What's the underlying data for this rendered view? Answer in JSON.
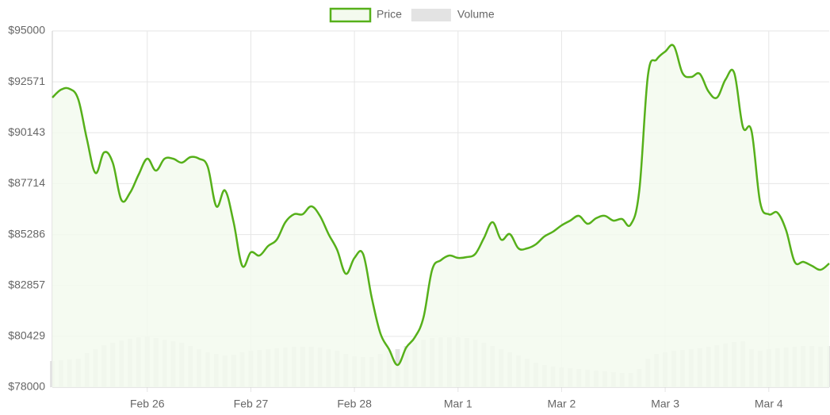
{
  "chart_data": {
    "type": "line",
    "categories": [
      null,
      null,
      null,
      null,
      null,
      null,
      null,
      null,
      null,
      null,
      null,
      "Feb 26",
      null,
      null,
      null,
      null,
      null,
      null,
      null,
      null,
      null,
      null,
      null,
      "Feb 27",
      null,
      null,
      null,
      null,
      null,
      null,
      null,
      null,
      null,
      null,
      null,
      "Feb 28",
      null,
      null,
      null,
      null,
      null,
      null,
      null,
      null,
      null,
      null,
      null,
      "Mar 1",
      null,
      null,
      null,
      null,
      null,
      null,
      null,
      null,
      null,
      null,
      null,
      "Mar 2",
      null,
      null,
      null,
      null,
      null,
      null,
      null,
      null,
      null,
      null,
      null,
      "Mar 3",
      null,
      null,
      null,
      null,
      null,
      null,
      null,
      null,
      null,
      null,
      null,
      "Mar 4",
      null,
      null,
      null,
      null,
      null,
      null,
      null
    ],
    "series": [
      {
        "name": "Price",
        "type": "line",
        "color": "#56b01a",
        "fill_color": "#f3faee",
        "values": [
          91820,
          92198,
          92236,
          91744,
          89851,
          88223,
          89207,
          88715,
          86935,
          87276,
          88147,
          88904,
          88336,
          88904,
          88904,
          88715,
          88980,
          88904,
          88526,
          86632,
          87390,
          85875,
          83793,
          84437,
          84285,
          84739,
          85042,
          85875,
          86254,
          86254,
          86632,
          86178,
          85307,
          84550,
          83414,
          84171,
          84361,
          82278,
          80575,
          79817,
          79060,
          79893,
          80385,
          81332,
          83604,
          84058,
          84285,
          84171,
          84209,
          84361,
          85118,
          85875,
          85042,
          85307,
          84626,
          84626,
          84815,
          85194,
          85421,
          85724,
          85951,
          86178,
          85800,
          86065,
          86178,
          85951,
          86027,
          85762,
          87390,
          92880,
          93637,
          94016,
          94281,
          92993,
          92804,
          92955,
          92122,
          91820,
          92690,
          92993,
          90419,
          90229,
          86822,
          86254,
          86330,
          85497,
          83982,
          83982,
          83793,
          83604,
          83907
        ]
      },
      {
        "name": "Volume",
        "type": "bar",
        "color": "#e3e3e3",
        "values": [
          79250,
          79288,
          79326,
          79363,
          79628,
          79818,
          80007,
          80121,
          80234,
          80310,
          80386,
          80423,
          80348,
          80272,
          80196,
          80121,
          79969,
          79818,
          79666,
          79591,
          79515,
          79553,
          79666,
          79742,
          79780,
          79818,
          79856,
          79893,
          79931,
          79931,
          79931,
          79893,
          79818,
          79742,
          79591,
          79477,
          79439,
          79439,
          79591,
          79742,
          79818,
          79969,
          80121,
          80272,
          80348,
          80386,
          80386,
          80386,
          80348,
          80272,
          80121,
          79969,
          79818,
          79666,
          79515,
          79363,
          79174,
          79060,
          78985,
          78947,
          78909,
          78871,
          78833,
          78795,
          78758,
          78720,
          78682,
          78682,
          78871,
          79363,
          79591,
          79666,
          79742,
          79780,
          79818,
          79856,
          79931,
          80007,
          80083,
          80159,
          80196,
          79818,
          79742,
          79818,
          79856,
          79893,
          79931,
          79969,
          79969,
          79931,
          79969
        ]
      }
    ],
    "ylim": [
      78000,
      95000
    ],
    "yticks": [
      {
        "value": 78000,
        "label": "$78000"
      },
      {
        "value": 80428.57,
        "label": "$80429"
      },
      {
        "value": 82857.14,
        "label": "$82857"
      },
      {
        "value": 85285.71,
        "label": "$85286"
      },
      {
        "value": 87714.29,
        "label": "$87714"
      },
      {
        "value": 90142.86,
        "label": "$90143"
      },
      {
        "value": 92571.43,
        "label": "$92571"
      },
      {
        "value": 95000,
        "label": "$95000"
      }
    ],
    "grid": true,
    "legend": "top"
  }
}
